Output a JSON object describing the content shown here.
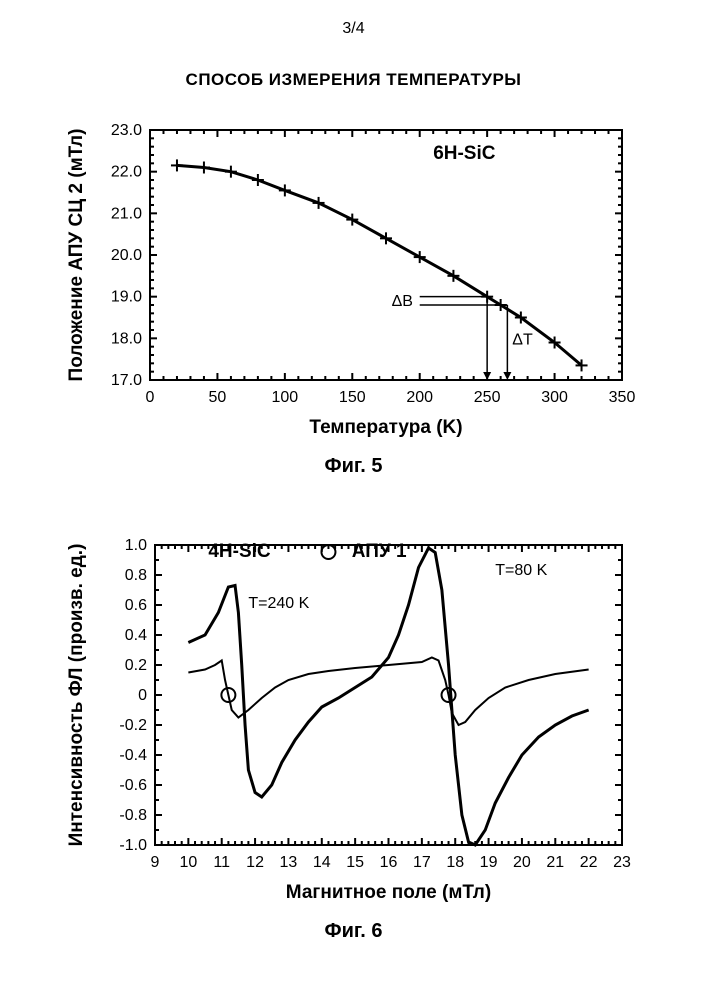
{
  "page_number": "3/4",
  "heading": "СПОСОБ ИЗМЕРЕНИЯ ТЕМПЕРАТУРЫ",
  "fig5": {
    "type": "line",
    "caption": "Фиг. 5",
    "title": "6H-SiC",
    "xlabel": "Температура (K)",
    "ylabel": "Положение АПУ СЦ 2 (мТл)",
    "xlim": [
      0,
      350
    ],
    "ylim": [
      17.0,
      23.0
    ],
    "xticks": [
      0,
      50,
      100,
      150,
      200,
      250,
      300,
      350
    ],
    "yticks": [
      17.0,
      18.0,
      19.0,
      20.0,
      21.0,
      22.0,
      23.0
    ],
    "ytick_labels": [
      "17.0",
      "18.0",
      "19.0",
      "20.0",
      "21.0",
      "22.0",
      "23.0"
    ],
    "xtick_labels": [
      "0",
      "50",
      "100",
      "150",
      "200",
      "250",
      "300",
      "350"
    ],
    "data": [
      [
        20,
        22.15
      ],
      [
        40,
        22.1
      ],
      [
        60,
        22.0
      ],
      [
        80,
        21.8
      ],
      [
        100,
        21.55
      ],
      [
        125,
        21.25
      ],
      [
        150,
        20.85
      ],
      [
        175,
        20.4
      ],
      [
        200,
        19.95
      ],
      [
        225,
        19.5
      ],
      [
        250,
        19.0
      ],
      [
        260,
        18.8
      ],
      [
        275,
        18.5
      ],
      [
        300,
        17.9
      ],
      [
        320,
        17.35
      ]
    ],
    "delta_b_label": "ΔB",
    "delta_t_label": "ΔT",
    "line_width": 3,
    "marker": "plus",
    "background_color": "#ffffff"
  },
  "fig6": {
    "type": "line",
    "caption": "Фиг. 6",
    "title": "4H-SiC",
    "legend_label": "АПУ 1",
    "xlabel": "Магнитное поле (мТл)",
    "ylabel": "Интенсивность ФЛ (произв. ед.)",
    "xlim": [
      9,
      23
    ],
    "ylim": [
      -1.0,
      1.0
    ],
    "xticks": [
      9,
      10,
      11,
      12,
      13,
      14,
      15,
      16,
      17,
      18,
      19,
      20,
      21,
      22,
      23
    ],
    "xtick_labels": [
      "9",
      "10",
      "11",
      "12",
      "13",
      "14",
      "15",
      "16",
      "17",
      "18",
      "19",
      "20",
      "21",
      "22",
      "23"
    ],
    "yticks": [
      -1.0,
      -0.8,
      -0.6,
      -0.4,
      -0.2,
      0,
      0.2,
      0.4,
      0.6,
      0.8,
      1.0
    ],
    "ytick_labels": [
      "-1.0",
      "-0.8",
      "-0.6",
      "-0.4",
      "-0.2",
      "0",
      "0.2",
      "0.4",
      "0.6",
      "0.8",
      "1.0"
    ],
    "series": {
      "T240": {
        "label": "T=240 K",
        "line_width": 2,
        "data": [
          [
            10.0,
            0.15
          ],
          [
            10.5,
            0.17
          ],
          [
            10.8,
            0.2
          ],
          [
            11.0,
            0.23
          ],
          [
            11.1,
            0.1
          ],
          [
            11.2,
            0.0
          ],
          [
            11.3,
            -0.1
          ],
          [
            11.5,
            -0.15
          ],
          [
            11.8,
            -0.1
          ],
          [
            12.2,
            -0.02
          ],
          [
            12.6,
            0.05
          ],
          [
            13.0,
            0.1
          ],
          [
            13.6,
            0.14
          ],
          [
            14.2,
            0.16
          ],
          [
            15.0,
            0.18
          ],
          [
            16.0,
            0.2
          ],
          [
            17.0,
            0.22
          ],
          [
            17.3,
            0.25
          ],
          [
            17.5,
            0.23
          ],
          [
            17.7,
            0.1
          ],
          [
            17.8,
            0.0
          ],
          [
            17.9,
            -0.12
          ],
          [
            18.1,
            -0.2
          ],
          [
            18.3,
            -0.18
          ],
          [
            18.6,
            -0.1
          ],
          [
            19.0,
            -0.02
          ],
          [
            19.5,
            0.05
          ],
          [
            20.2,
            0.1
          ],
          [
            21.0,
            0.14
          ],
          [
            22.0,
            0.17
          ]
        ]
      },
      "T80": {
        "label": "T=80 K",
        "line_width": 3,
        "data": [
          [
            10.0,
            0.35
          ],
          [
            10.5,
            0.4
          ],
          [
            10.9,
            0.55
          ],
          [
            11.2,
            0.72
          ],
          [
            11.4,
            0.73
          ],
          [
            11.5,
            0.55
          ],
          [
            11.6,
            0.2
          ],
          [
            11.7,
            -0.2
          ],
          [
            11.8,
            -0.5
          ],
          [
            12.0,
            -0.65
          ],
          [
            12.2,
            -0.68
          ],
          [
            12.5,
            -0.6
          ],
          [
            12.8,
            -0.45
          ],
          [
            13.2,
            -0.3
          ],
          [
            13.6,
            -0.18
          ],
          [
            14.0,
            -0.08
          ],
          [
            14.5,
            -0.02
          ],
          [
            15.0,
            0.05
          ],
          [
            15.5,
            0.12
          ],
          [
            16.0,
            0.25
          ],
          [
            16.3,
            0.4
          ],
          [
            16.6,
            0.6
          ],
          [
            16.9,
            0.85
          ],
          [
            17.2,
            0.98
          ],
          [
            17.4,
            0.95
          ],
          [
            17.6,
            0.7
          ],
          [
            17.8,
            0.2
          ],
          [
            18.0,
            -0.4
          ],
          [
            18.2,
            -0.8
          ],
          [
            18.4,
            -0.98
          ],
          [
            18.6,
            -1.0
          ],
          [
            18.9,
            -0.9
          ],
          [
            19.2,
            -0.72
          ],
          [
            19.6,
            -0.55
          ],
          [
            20.0,
            -0.4
          ],
          [
            20.5,
            -0.28
          ],
          [
            21.0,
            -0.2
          ],
          [
            21.5,
            -0.14
          ],
          [
            22.0,
            -0.1
          ]
        ]
      }
    },
    "markers": [
      [
        11.2,
        0.0
      ],
      [
        17.8,
        0.0
      ]
    ],
    "marker_radius": 7,
    "background_color": "#ffffff"
  }
}
